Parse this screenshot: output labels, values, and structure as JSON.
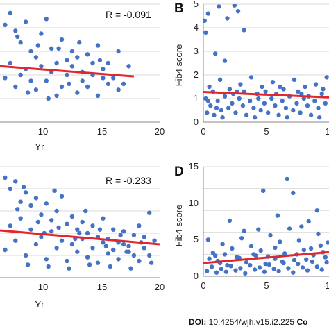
{
  "chart_data": [
    {
      "type": "scatter",
      "panel_label": "",
      "annotation": "R = -0.091",
      "xlabel": "Yr",
      "ylabel": "",
      "x_ticks": [
        "10",
        "15",
        "20"
      ],
      "y_ticks": [],
      "xlim": [
        4.5,
        20
      ],
      "ylim": [
        0,
        4
      ],
      "trend": {
        "x": [
          4.5,
          17.5
        ],
        "y": [
          1.9,
          1.55
        ]
      },
      "grid": "horizontal",
      "points": [
        [
          5,
          3.3
        ],
        [
          5.5,
          3.7
        ],
        [
          6,
          3.1
        ],
        [
          6.5,
          2.7
        ],
        [
          7,
          3.4
        ],
        [
          7.5,
          2.4
        ],
        [
          8,
          2.2
        ],
        [
          8.5,
          3.0
        ],
        [
          9,
          3.5
        ],
        [
          9.5,
          2.5
        ],
        [
          10,
          2.0
        ],
        [
          10.5,
          2.8
        ],
        [
          11,
          2.1
        ],
        [
          11.5,
          1.9
        ],
        [
          12,
          2.2
        ],
        [
          12.5,
          1.7
        ],
        [
          13,
          2.3
        ],
        [
          13.5,
          1.6
        ],
        [
          14,
          2.6
        ],
        [
          14.5,
          1.8
        ],
        [
          15,
          2.0
        ],
        [
          15.5,
          1.5
        ],
        [
          16,
          2.4
        ],
        [
          16.5,
          1.3
        ],
        [
          17,
          1.9
        ],
        [
          5,
          1.5
        ],
        [
          6,
          1.2
        ],
        [
          7,
          1.8
        ],
        [
          8,
          1.1
        ],
        [
          9,
          1.4
        ],
        [
          10,
          0.9
        ],
        [
          11,
          1.6
        ],
        [
          12,
          1.0
        ],
        [
          13,
          1.2
        ],
        [
          14,
          0.9
        ],
        [
          15,
          1.3
        ],
        [
          16,
          1.1
        ],
        [
          5.5,
          2.0
        ],
        [
          6.5,
          1.6
        ],
        [
          7.5,
          1.4
        ],
        [
          8.5,
          1.9
        ],
        [
          9.5,
          1.7
        ],
        [
          10.5,
          1.2
        ],
        [
          11.5,
          2.4
        ],
        [
          12.5,
          1.4
        ],
        [
          13.5,
          2.0
        ],
        [
          14.5,
          1.5
        ],
        [
          6.2,
          2.9
        ],
        [
          8.2,
          2.6
        ],
        [
          10.2,
          2.5
        ],
        [
          12.2,
          2.7
        ],
        [
          14.2,
          2.1
        ],
        [
          7.2,
          1.0
        ],
        [
          9.2,
          0.8
        ],
        [
          11.2,
          1.3
        ]
      ]
    },
    {
      "type": "scatter",
      "panel_label": "B",
      "annotation": "",
      "xlabel": "",
      "ylabel": "Fib4 score",
      "x_ticks": [
        "0",
        "5",
        "1"
      ],
      "y_ticks": [
        "0",
        "1",
        "2",
        "3",
        "4",
        "5"
      ],
      "xlim": [
        0,
        10.5
      ],
      "ylim": [
        0,
        5
      ],
      "trend": {
        "x": [
          0,
          10.5
        ],
        "y": [
          1.28,
          1.05
        ]
      },
      "grid": "horizontal",
      "points": [
        [
          0.1,
          4.3
        ],
        [
          0.2,
          3.8
        ],
        [
          0.4,
          4.6
        ],
        [
          1.3,
          4.9
        ],
        [
          2.0,
          4.4
        ],
        [
          2.6,
          4.95
        ],
        [
          2.9,
          4.7
        ],
        [
          3.4,
          3.9
        ],
        [
          1.0,
          2.9
        ],
        [
          1.8,
          2.6
        ],
        [
          0.3,
          0.4
        ],
        [
          0.6,
          0.7
        ],
        [
          0.9,
          0.3
        ],
        [
          1.2,
          0.9
        ],
        [
          1.5,
          0.5
        ],
        [
          1.8,
          1.1
        ],
        [
          2.1,
          0.6
        ],
        [
          2.4,
          0.8
        ],
        [
          2.7,
          0.4
        ],
        [
          3.0,
          1.0
        ],
        [
          3.3,
          0.7
        ],
        [
          3.6,
          0.3
        ],
        [
          3.9,
          0.9
        ],
        [
          4.2,
          0.6
        ],
        [
          4.5,
          1.2
        ],
        [
          4.8,
          0.5
        ],
        [
          5.1,
          0.8
        ],
        [
          5.4,
          0.4
        ],
        [
          5.7,
          1.0
        ],
        [
          6.0,
          0.7
        ],
        [
          6.3,
          0.3
        ],
        [
          6.6,
          0.9
        ],
        [
          6.9,
          0.6
        ],
        [
          7.2,
          1.1
        ],
        [
          7.5,
          0.5
        ],
        [
          7.8,
          0.8
        ],
        [
          8.1,
          0.4
        ],
        [
          8.4,
          1.0
        ],
        [
          8.7,
          0.7
        ],
        [
          9.0,
          0.3
        ],
        [
          9.3,
          0.9
        ],
        [
          9.6,
          0.6
        ],
        [
          9.9,
          1.2
        ],
        [
          10.2,
          0.8
        ],
        [
          0.5,
          1.5
        ],
        [
          1.4,
          1.8
        ],
        [
          2.2,
          1.4
        ],
        [
          3.1,
          1.6
        ],
        [
          4.0,
          1.9
        ],
        [
          4.9,
          1.5
        ],
        [
          5.8,
          1.7
        ],
        [
          6.7,
          1.4
        ],
        [
          7.6,
          1.8
        ],
        [
          8.5,
          1.5
        ],
        [
          9.4,
          1.6
        ],
        [
          10.3,
          1.9
        ],
        [
          0.2,
          1.0
        ],
        [
          0.8,
          1.3
        ],
        [
          1.6,
          0.2
        ],
        [
          2.5,
          1.2
        ],
        [
          3.4,
          1.3
        ],
        [
          4.3,
          0.2
        ],
        [
          5.2,
          1.3
        ],
        [
          6.1,
          1.2
        ],
        [
          7.0,
          0.2
        ],
        [
          7.9,
          1.3
        ],
        [
          8.8,
          1.1
        ],
        [
          9.7,
          0.2
        ],
        [
          0.4,
          0.9
        ],
        [
          1.1,
          0.6
        ],
        [
          2.8,
          1.3
        ],
        [
          4.6,
          1.0
        ],
        [
          6.4,
          1.5
        ],
        [
          8.2,
          1.2
        ],
        [
          10.0,
          1.4
        ]
      ]
    },
    {
      "type": "scatter",
      "panel_label": "",
      "annotation": "R = -0.233",
      "xlabel": "Yr",
      "ylabel": "",
      "x_ticks": [
        "10",
        "15",
        "20"
      ],
      "y_ticks": [],
      "xlim": [
        4.5,
        20
      ],
      "ylim": [
        0,
        6
      ],
      "trend": {
        "x": [
          4.5,
          20
        ],
        "y": [
          2.55,
          1.8
        ]
      },
      "grid": "horizontal",
      "points": [
        [
          5,
          5.4
        ],
        [
          5.5,
          4.8
        ],
        [
          6,
          5.2
        ],
        [
          6.5,
          4.1
        ],
        [
          7,
          4.6
        ],
        [
          7.5,
          3.9
        ],
        [
          8,
          4.3
        ],
        [
          8.5,
          3.4
        ],
        [
          9,
          4.0
        ],
        [
          9.5,
          3.1
        ],
        [
          10,
          3.6
        ],
        [
          10.5,
          4.4
        ],
        [
          11,
          2.9
        ],
        [
          11.5,
          3.3
        ],
        [
          12,
          2.6
        ],
        [
          12.5,
          3.0
        ],
        [
          13,
          2.4
        ],
        [
          13.5,
          2.8
        ],
        [
          14,
          2.2
        ],
        [
          14.5,
          3.2
        ],
        [
          15,
          2.1
        ],
        [
          15.5,
          2.6
        ],
        [
          16,
          1.9
        ],
        [
          16.5,
          2.5
        ],
        [
          17,
          1.7
        ],
        [
          17.5,
          2.3
        ],
        [
          18,
          2.8
        ],
        [
          18.5,
          1.6
        ],
        [
          19,
          3.5
        ],
        [
          19.5,
          2.0
        ],
        [
          5,
          1.5
        ],
        [
          6,
          2.0
        ],
        [
          7,
          1.2
        ],
        [
          8,
          1.8
        ],
        [
          9,
          1.0
        ],
        [
          10,
          1.6
        ],
        [
          11,
          0.9
        ],
        [
          12,
          1.4
        ],
        [
          13,
          1.1
        ],
        [
          14,
          0.8
        ],
        [
          15,
          1.3
        ],
        [
          16,
          1.0
        ],
        [
          17,
          1.4
        ],
        [
          18,
          0.9
        ],
        [
          19,
          1.2
        ],
        [
          5.5,
          2.8
        ],
        [
          6.5,
          3.2
        ],
        [
          7.5,
          2.6
        ],
        [
          8.5,
          2.2
        ],
        [
          9.5,
          2.5
        ],
        [
          10.5,
          2.0
        ],
        [
          11.5,
          1.8
        ],
        [
          12.5,
          2.1
        ],
        [
          13.5,
          1.6
        ],
        [
          14.5,
          1.9
        ],
        [
          15.5,
          1.5
        ],
        [
          16.5,
          1.8
        ],
        [
          17.5,
          1.2
        ],
        [
          18.5,
          2.2
        ],
        [
          6.2,
          3.7
        ],
        [
          8.2,
          3.0
        ],
        [
          10.2,
          2.7
        ],
        [
          12.2,
          2.4
        ],
        [
          14.2,
          2.6
        ],
        [
          16.2,
          2.3
        ],
        [
          18.2,
          1.9
        ],
        [
          7.2,
          0.7
        ],
        [
          9.2,
          0.6
        ],
        [
          11.2,
          0.5
        ],
        [
          13.2,
          0.7
        ],
        [
          15.2,
          0.6
        ],
        [
          17.2,
          0.5
        ],
        [
          19.2,
          0.8
        ],
        [
          6.8,
          4.9
        ],
        [
          9.8,
          4.7
        ],
        [
          12.8,
          3.6
        ],
        [
          8.8,
          2.4
        ],
        [
          11.8,
          2.1
        ],
        [
          14.8,
          1.7
        ],
        [
          16.8,
          1.4
        ]
      ]
    },
    {
      "type": "scatter",
      "panel_label": "D",
      "annotation": "",
      "xlabel": "",
      "ylabel": "Fib4 score",
      "x_ticks": [
        "0",
        "5",
        "1"
      ],
      "y_ticks": [
        "0",
        "5",
        "10",
        "15"
      ],
      "xlim": [
        0,
        10.5
      ],
      "ylim": [
        0,
        15
      ],
      "trend": {
        "x": [
          0,
          10.5
        ],
        "y": [
          1.8,
          3.3
        ]
      },
      "grid": "horizontal",
      "points": [
        [
          0.4,
          5.0
        ],
        [
          0.8,
          3.2
        ],
        [
          1.2,
          2.1
        ],
        [
          1.6,
          4.4
        ],
        [
          2.0,
          1.5
        ],
        [
          2.4,
          3.8
        ],
        [
          2.8,
          2.6
        ],
        [
          3.2,
          5.2
        ],
        [
          3.6,
          1.9
        ],
        [
          4.0,
          4.1
        ],
        [
          4.4,
          2.8
        ],
        [
          4.8,
          3.5
        ],
        [
          5.2,
          1.7
        ],
        [
          5.6,
          5.6
        ],
        [
          6.0,
          2.4
        ],
        [
          6.4,
          4.7
        ],
        [
          6.8,
          3.1
        ],
        [
          7.2,
          6.5
        ],
        [
          7.6,
          2.2
        ],
        [
          8.0,
          4.9
        ],
        [
          8.4,
          3.6
        ],
        [
          8.8,
          7.5
        ],
        [
          9.2,
          2.9
        ],
        [
          9.6,
          5.8
        ],
        [
          10.0,
          3.3
        ],
        [
          10.4,
          4.6
        ],
        [
          5.0,
          11.7
        ],
        [
          7.0,
          13.3
        ],
        [
          7.5,
          11.4
        ],
        [
          9.5,
          9.0
        ],
        [
          0.3,
          0.7
        ],
        [
          0.7,
          1.3
        ],
        [
          1.1,
          0.5
        ],
        [
          1.5,
          1.0
        ],
        [
          1.9,
          0.6
        ],
        [
          2.3,
          1.4
        ],
        [
          2.7,
          0.8
        ],
        [
          3.1,
          1.1
        ],
        [
          3.5,
          0.4
        ],
        [
          3.9,
          1.5
        ],
        [
          4.3,
          0.9
        ],
        [
          4.7,
          1.2
        ],
        [
          5.1,
          0.6
        ],
        [
          5.5,
          1.6
        ],
        [
          5.9,
          1.0
        ],
        [
          6.3,
          0.7
        ],
        [
          6.7,
          1.8
        ],
        [
          7.1,
          1.1
        ],
        [
          7.5,
          0.5
        ],
        [
          7.9,
          1.7
        ],
        [
          8.3,
          1.2
        ],
        [
          8.7,
          0.8
        ],
        [
          9.1,
          2.0
        ],
        [
          9.5,
          1.3
        ],
        [
          9.9,
          0.9
        ],
        [
          10.3,
          1.9
        ],
        [
          0.5,
          2.4
        ],
        [
          1.0,
          2.8
        ],
        [
          1.4,
          1.8
        ],
        [
          3.0,
          2.5
        ],
        [
          4.2,
          3.0
        ],
        [
          5.4,
          2.7
        ],
        [
          6.6,
          2.0
        ],
        [
          7.8,
          3.0
        ],
        [
          9.0,
          3.8
        ],
        [
          10.2,
          2.6
        ],
        [
          2.2,
          7.6
        ],
        [
          3.4,
          6.2
        ],
        [
          6.2,
          8.3
        ],
        [
          8.2,
          6.8
        ],
        [
          4.6,
          6.4
        ],
        [
          1.8,
          3.0
        ],
        [
          6.0,
          3.9
        ],
        [
          8.6,
          2.3
        ],
        [
          9.8,
          4.2
        ]
      ]
    }
  ],
  "footer": {
    "doi_prefix": "DOI:",
    "doi_value": " 10.4254/wjh.v15.i2.225 ",
    "doi_suffix": "Co"
  },
  "colors": {
    "point": "#4472c4",
    "trend": "#e3262b",
    "grid": "#d9d9d9",
    "axis": "#888888"
  }
}
